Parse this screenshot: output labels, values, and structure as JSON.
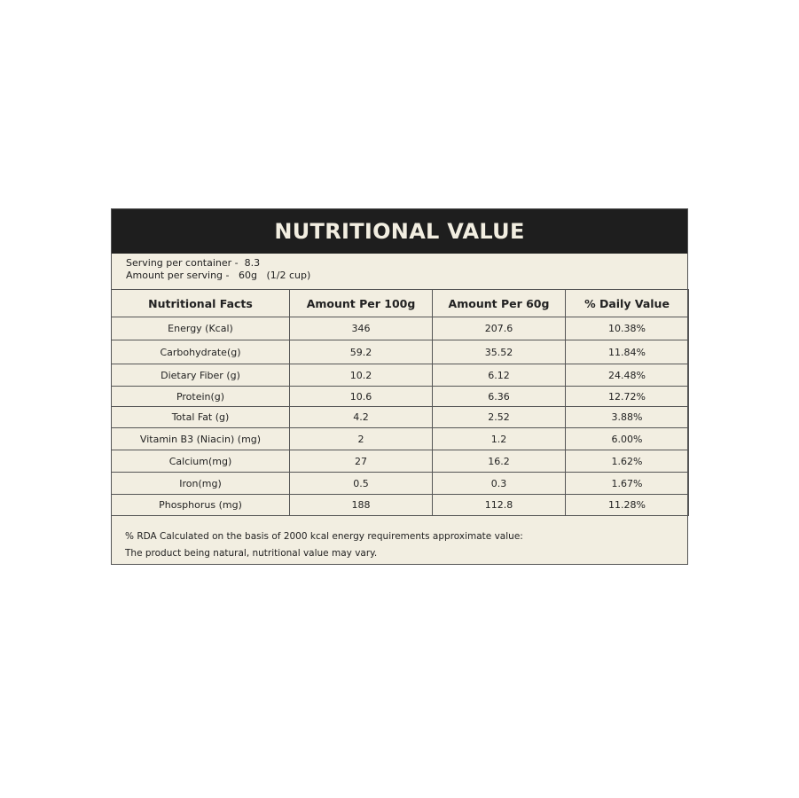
{
  "title": "NUTRITIONAL VALUE",
  "serving": {
    "per_container": "Serving per container -  8.3",
    "amount": "Amount per serving -   60g   (1/2 cup)"
  },
  "columns": [
    "Nutritional Facts",
    "Amount Per 100g",
    "Amount Per 60g",
    "% Daily Value"
  ],
  "rows": [
    [
      "Energy (Kcal)",
      "346",
      "207.6",
      "10.38%"
    ],
    [
      "Carbohydrate(g)",
      "59.2",
      "35.52",
      "11.84%"
    ],
    [
      "Dietary Fiber (g)",
      "10.2",
      "6.12",
      "24.48%"
    ],
    [
      "Protein(g)",
      "10.6",
      "6.36",
      "12.72%"
    ],
    [
      "Total Fat (g)",
      "4.2",
      "2.52",
      "3.88%"
    ],
    [
      "Vitamin B3 (Niacin) (mg)",
      "2",
      "1.2",
      "6.00%"
    ],
    [
      "Calcium(mg)",
      "27",
      "16.2",
      "1.62%"
    ],
    [
      "Iron(mg)",
      "0.5",
      "0.3",
      "1.67%"
    ],
    [
      "Phosphorus (mg)",
      "188",
      "112.8",
      "11.28%"
    ]
  ],
  "footnote": [
    "% RDA Calculated on the basis of 2000 kcal energy requirements approximate value:",
    "The product being natural, nutritional value may vary."
  ]
}
